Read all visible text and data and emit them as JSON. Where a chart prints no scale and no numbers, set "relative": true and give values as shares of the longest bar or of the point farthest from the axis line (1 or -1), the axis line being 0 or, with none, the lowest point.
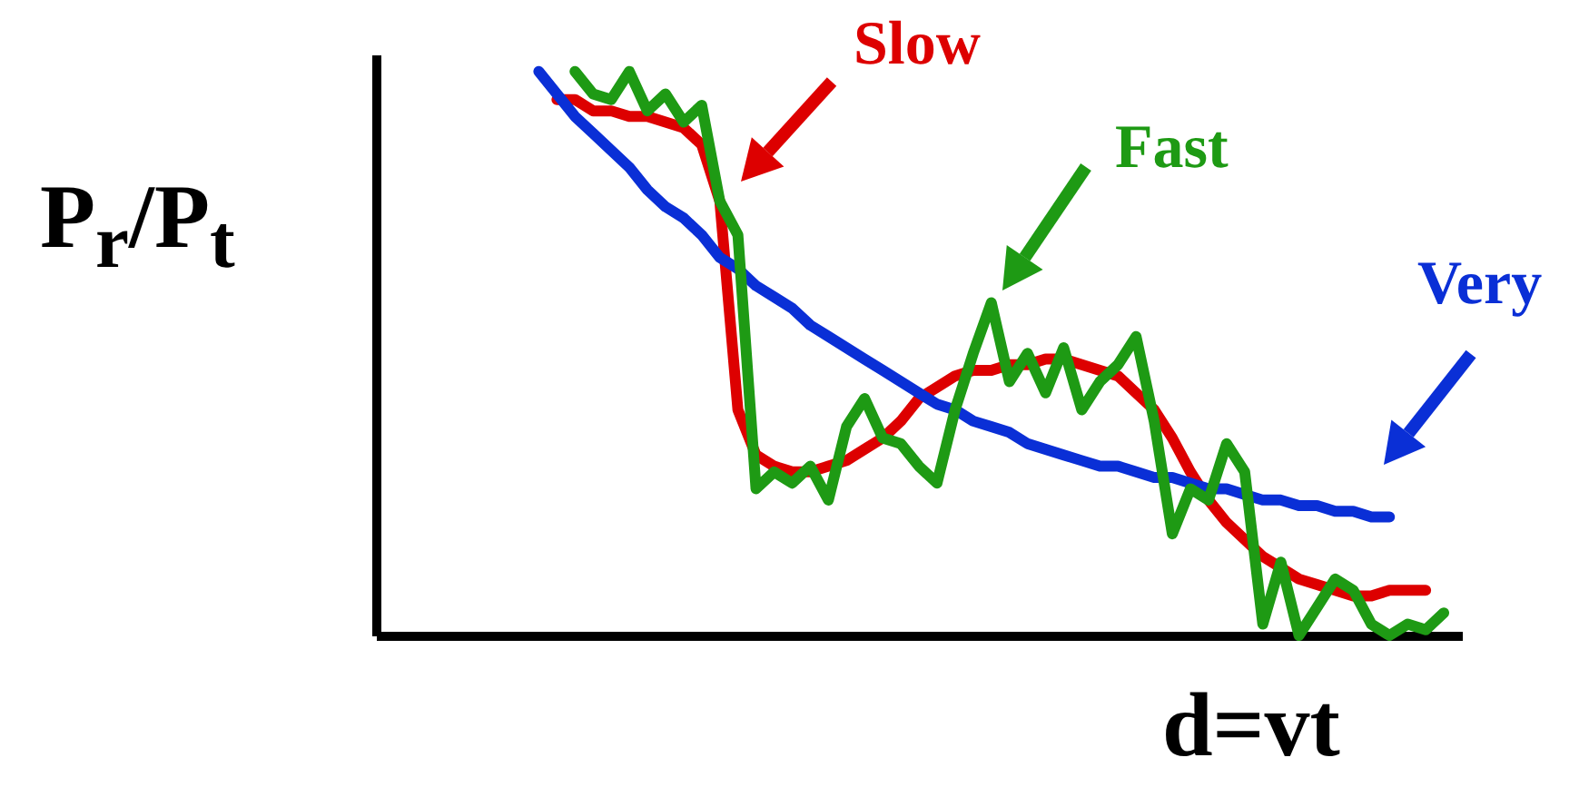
{
  "chart_data": {
    "type": "line",
    "relative": true,
    "xlabel": "d=vt",
    "ylabel": "P$_{r}$/P$_{t}$",
    "categories": [
      null,
      null,
      null,
      null,
      null,
      null,
      null,
      null,
      null,
      null,
      null,
      null,
      null,
      null,
      null,
      null,
      null,
      null,
      null,
      null,
      null,
      null,
      null,
      null,
      null,
      null,
      null,
      null,
      null,
      null,
      null,
      null,
      null,
      null,
      null,
      null,
      null,
      null,
      null,
      null,
      null,
      null,
      null,
      null,
      null,
      null,
      null,
      null,
      null,
      null,
      null,
      null,
      null,
      null,
      null,
      null,
      null,
      null,
      null,
      null,
      null
    ],
    "series": [
      {
        "name": "Slow",
        "color": "#dd0000",
        "values": [
          null,
          null,
          null,
          null,
          null,
          null,
          null,
          null,
          null,
          null,
          0.95,
          0.95,
          0.93,
          0.93,
          0.92,
          0.92,
          0.91,
          0.9,
          0.87,
          0.77,
          0.4,
          0.32,
          0.3,
          0.29,
          0.29,
          0.3,
          0.31,
          0.33,
          0.35,
          0.38,
          0.42,
          0.44,
          0.46,
          0.47,
          0.47,
          0.48,
          0.48,
          0.49,
          0.49,
          0.48,
          0.47,
          0.46,
          0.43,
          0.4,
          0.35,
          0.29,
          0.24,
          0.2,
          0.17,
          0.14,
          0.12,
          0.1,
          0.09,
          0.08,
          0.07,
          0.07,
          0.08,
          0.08,
          0.08,
          null,
          null
        ]
      },
      {
        "name": "Very",
        "color": "#0a2fd6",
        "values": [
          null,
          null,
          null,
          null,
          null,
          null,
          null,
          null,
          null,
          1.0,
          0.96,
          0.92,
          0.89,
          0.86,
          0.83,
          0.79,
          0.76,
          0.74,
          0.71,
          0.67,
          0.65,
          0.62,
          0.6,
          0.58,
          0.55,
          0.53,
          0.51,
          0.49,
          0.47,
          0.45,
          0.43,
          0.41,
          0.4,
          0.38,
          0.37,
          0.36,
          0.34,
          0.33,
          0.32,
          0.31,
          0.3,
          0.3,
          0.29,
          0.28,
          0.28,
          0.27,
          0.26,
          0.26,
          0.25,
          0.24,
          0.24,
          0.23,
          0.23,
          0.22,
          0.22,
          0.21,
          0.21,
          null,
          null,
          null,
          null
        ]
      },
      {
        "name": "Fast",
        "color": "#1e9a14",
        "values": [
          null,
          null,
          null,
          null,
          null,
          null,
          null,
          null,
          null,
          null,
          null,
          1.0,
          0.96,
          0.95,
          1.0,
          0.93,
          0.96,
          0.91,
          0.94,
          0.77,
          0.71,
          0.26,
          0.29,
          0.27,
          0.3,
          0.24,
          0.37,
          0.42,
          0.35,
          0.34,
          0.3,
          0.27,
          0.4,
          0.5,
          0.59,
          0.45,
          0.5,
          0.43,
          0.51,
          0.4,
          0.45,
          0.48,
          0.53,
          0.38,
          0.18,
          0.26,
          0.24,
          0.34,
          0.29,
          0.02,
          0.13,
          0.0,
          0.05,
          0.1,
          0.08,
          0.02,
          0.0,
          0.02,
          0.01,
          0.04,
          null
        ]
      }
    ]
  }
}
